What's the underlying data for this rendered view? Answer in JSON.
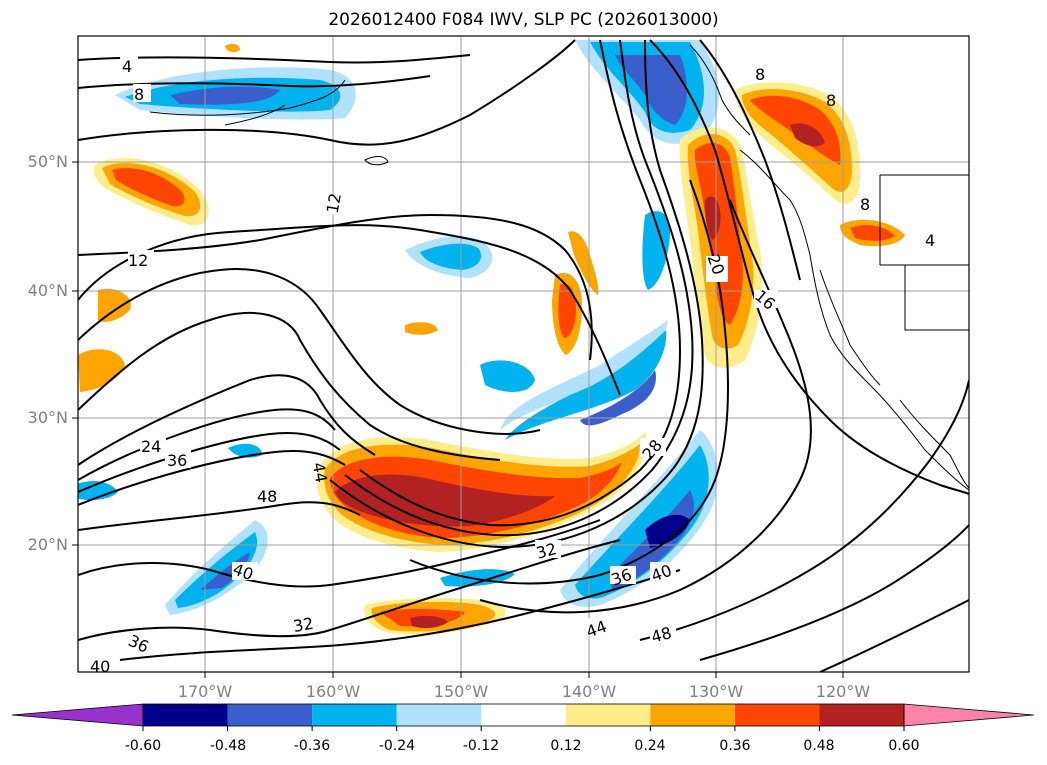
{
  "title": "2026012400 F084 IWV, SLP PC (2026013000)",
  "lat_labels": [
    "50°N",
    "40°N",
    "30°N",
    "20°N"
  ],
  "lon_labels": [
    "170°W",
    "160°W",
    "150°W",
    "140°W",
    "130°W",
    "120°W"
  ],
  "colorbar": {
    "ticks": [
      "-0.60",
      "-0.48",
      "-0.36",
      "-0.24",
      "-0.12",
      "0.12",
      "0.24",
      "0.36",
      "0.48",
      "0.60"
    ],
    "colors": [
      "#9932cc",
      "#00008b",
      "#3a5fcd",
      "#00b2ee",
      "#b0e2ff",
      "#ffffff",
      "#ffec8b",
      "#ffa500",
      "#ff4500",
      "#b22222",
      "#ff82ab"
    ]
  },
  "contour_labels": [
    "4",
    "8",
    "12",
    "12",
    "24",
    "36",
    "44",
    "48",
    "40",
    "36",
    "40",
    "32",
    "32",
    "36",
    "40",
    "44",
    "48",
    "28",
    "20",
    "16",
    "8",
    "8",
    "8",
    "4"
  ]
}
